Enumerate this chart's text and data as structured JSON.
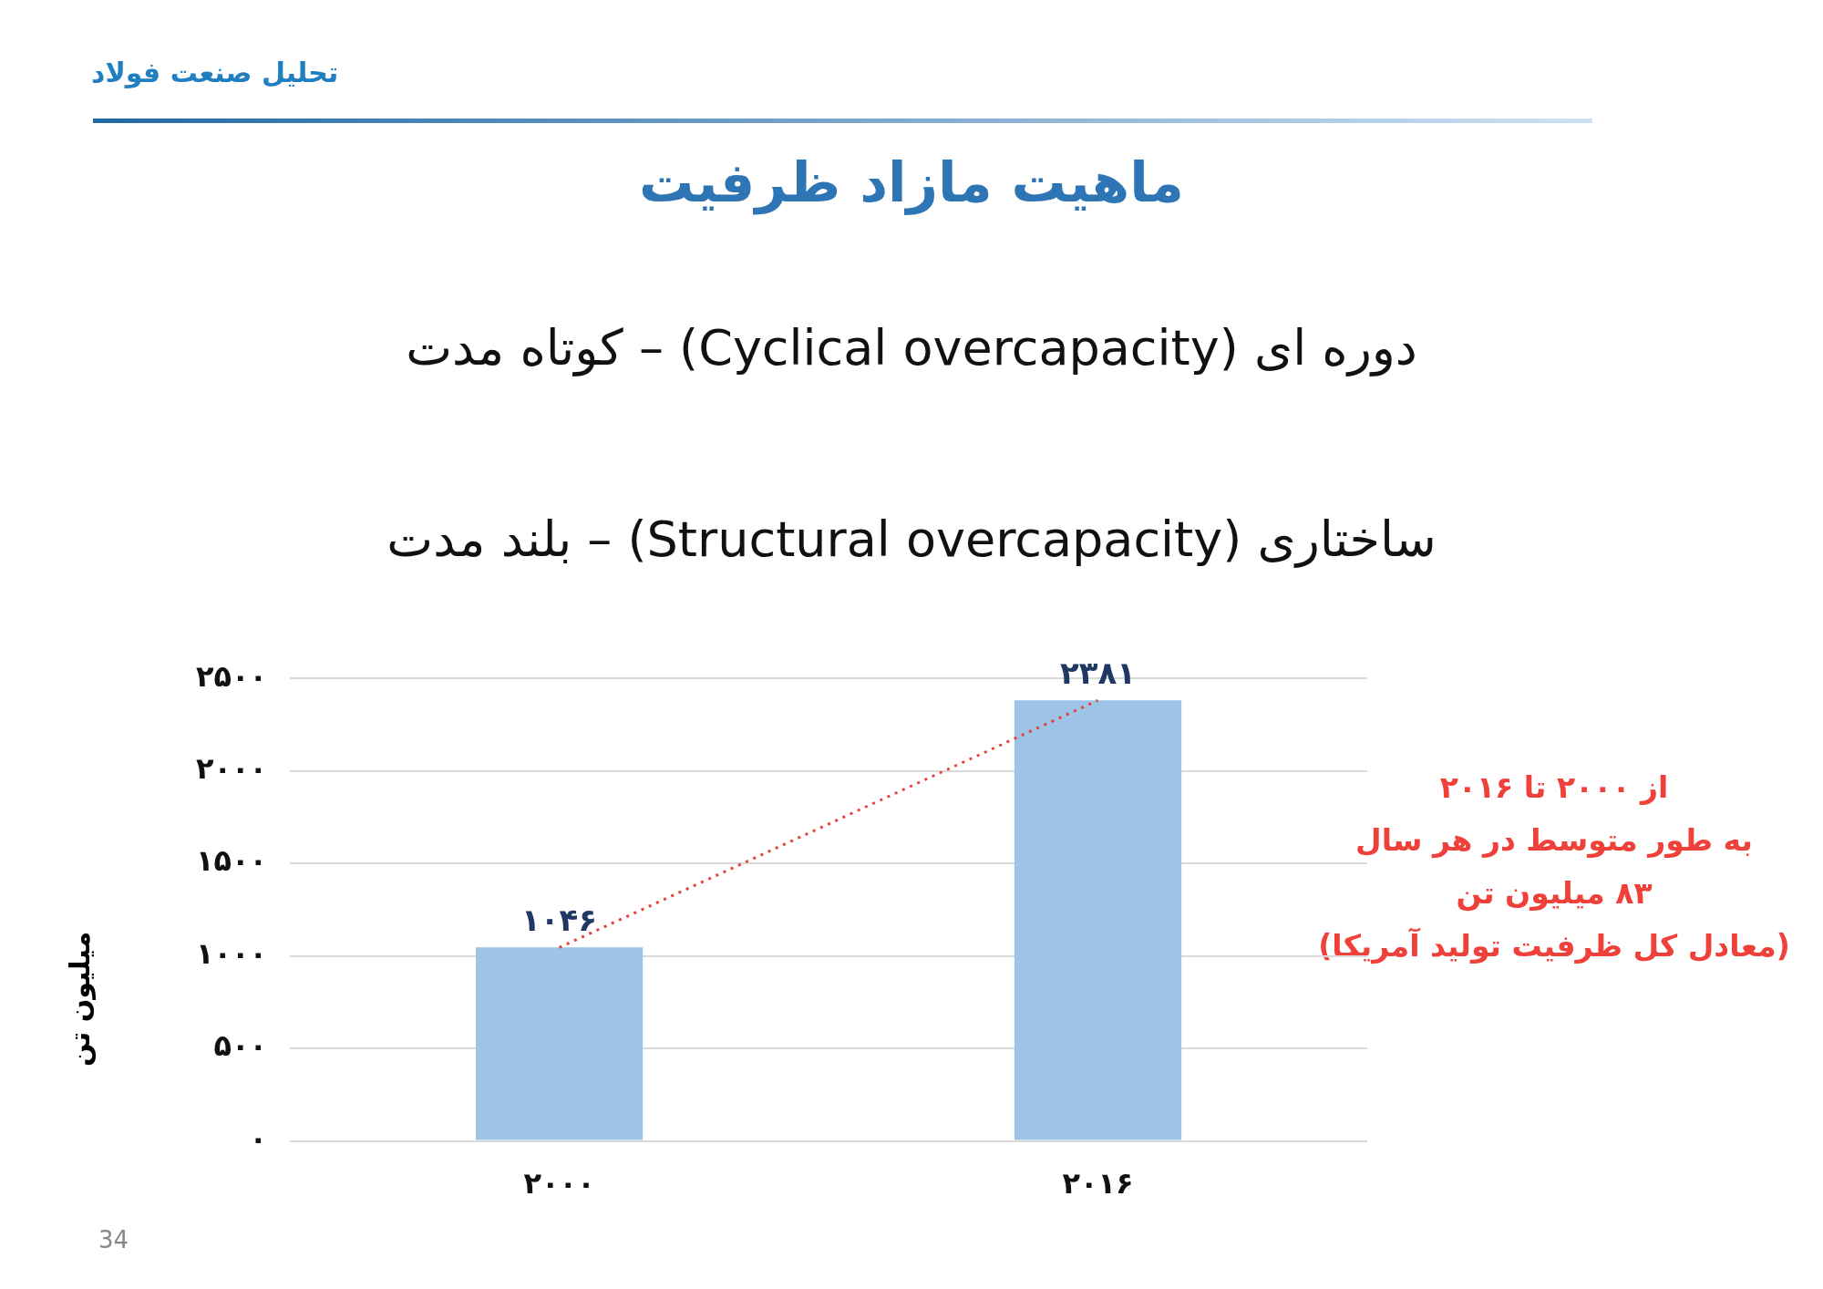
{
  "chart_data": {
    "type": "bar",
    "title": "ماهیت مازاد ظرفیت",
    "subtitle": "دوره ای (Cyclical overcapacity) – کوتاه مدت",
    "annotations": [
      "تحلیل صنعت فولاد",
      "ساختاری (Structural overcapacity) – بلند مدت",
      "از ۲۰۰۰ تا ۲۰۱۶\nبه طور متوسط در هر سال\n۸۳ میلیون تن\n(معادل کل ظرفیت تولید آمریکا)",
      "34"
    ],
    "ylabel": "میلیون تن",
    "categories": [
      "۲۰۰۰",
      "۲۰۱۶"
    ],
    "series": [
      {
        "color": "#9dc3e6",
        "values": [
          1046,
          2381
        ],
        "value_labels": [
          "۱۰۴۶",
          "۲۳۸۱"
        ]
      },
      {
        "type": "line",
        "color": "#e8403a",
        "values": [
          1046,
          2381
        ],
        "line_style": "dotted",
        "marker": "none"
      }
    ],
    "ylim": [
      0,
      2500
    ],
    "yticks": [
      {
        "value": 0,
        "label": "۰"
      },
      {
        "value": 500,
        "label": "۵۰۰"
      },
      {
        "value": 1000,
        "label": "۱۰۰۰"
      },
      {
        "value": 1500,
        "label": "۱۵۰۰"
      },
      {
        "value": 2000,
        "label": "۲۰۰۰"
      },
      {
        "value": 2500,
        "label": "۲۵۰۰"
      }
    ],
    "grid": "y"
  }
}
